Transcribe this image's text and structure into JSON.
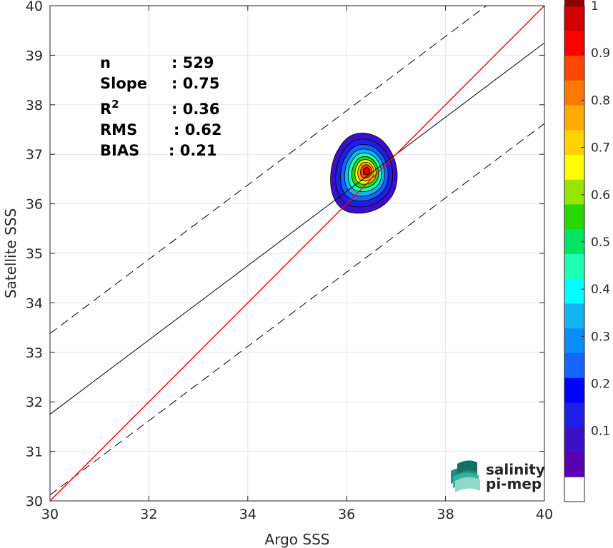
{
  "chart_data": {
    "type": "heatmap",
    "xlabel": "Argo SSS",
    "ylabel": "Satellite SSS",
    "xlim": [
      30,
      40
    ],
    "ylim": [
      30,
      40
    ],
    "x_ticks": [
      "30",
      "32",
      "34",
      "36",
      "38",
      "40"
    ],
    "y_ticks": [
      "30",
      "31",
      "32",
      "33",
      "34",
      "35",
      "36",
      "37",
      "38",
      "39",
      "40"
    ],
    "grid": true,
    "stats": [
      {
        "label": "n",
        "value": ": 529"
      },
      {
        "label": "Slope",
        "value": ": 0.75"
      },
      {
        "label": "R",
        "sup": "2",
        "value": ": 0.36"
      },
      {
        "label": "RMS",
        "value": ": 0.62"
      },
      {
        "label": "BIAS",
        "value": ": 0.21"
      }
    ],
    "lines": {
      "one_to_one": {
        "intercept": 0,
        "slope": 1,
        "color": "#ff0000"
      },
      "regression": {
        "intercept": 9.25,
        "slope": 0.75,
        "color": "#000000"
      },
      "rms_band_offset": 1.63
    },
    "density": {
      "center": [
        36.32,
        36.58
      ],
      "normalized_levels": [
        0.05,
        0.1,
        0.2,
        0.3,
        0.4,
        0.5,
        0.6,
        0.7,
        0.8,
        0.9
      ],
      "level_extent_x": [
        0.7,
        0.6,
        0.5,
        0.42,
        0.35,
        0.28,
        0.22,
        0.17,
        0.12,
        0.07
      ],
      "level_extent_y": [
        0.85,
        0.72,
        0.6,
        0.5,
        0.41,
        0.33,
        0.26,
        0.2,
        0.14,
        0.08
      ]
    },
    "colorbar": {
      "range": [
        0,
        1
      ],
      "ticks": [
        "0.1",
        "0.2",
        "0.3",
        "0.4",
        "0.5",
        "0.6",
        "0.7",
        "0.8",
        "0.9",
        "1"
      ],
      "colors": [
        "#ffffff",
        "#5a00b4",
        "#3c0fc8",
        "#1e1ee6",
        "#0000ff",
        "#1464ff",
        "#0a8cff",
        "#14b4f0",
        "#00ffff",
        "#1effb4",
        "#00e664",
        "#28d700",
        "#96e600",
        "#ffff00",
        "#ffd200",
        "#ffaa00",
        "#ff7800",
        "#ff4600",
        "#ff0000",
        "#d20000",
        "#8c0000"
      ]
    }
  },
  "logo": {
    "line1": "salinity",
    "line2": "pi-mep",
    "icon": "wave-chart-icon"
  }
}
